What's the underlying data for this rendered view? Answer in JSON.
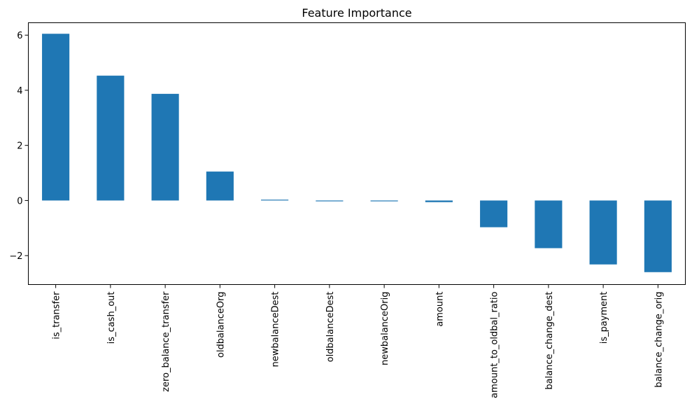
{
  "chart_data": {
    "type": "bar",
    "title": "Feature Importance",
    "xlabel": "",
    "ylabel": "",
    "categories": [
      "is_transfer",
      "is_cash_out",
      "zero_balance_transfer",
      "oldbalanceOrg",
      "newbalanceDest",
      "oldbalanceDest",
      "newbalanceOrig",
      "amount",
      "amount_to_oldbal_ratio",
      "balance_change_dest",
      "is_payment",
      "balance_change_orig"
    ],
    "values": [
      6.05,
      4.53,
      3.87,
      1.05,
      0.03,
      -0.03,
      -0.03,
      -0.06,
      -0.97,
      -1.73,
      -2.32,
      -2.6
    ],
    "ylim": [
      -3.05,
      6.45
    ],
    "yticks": [
      6,
      4,
      2,
      0,
      -2
    ],
    "ytick_labels": [
      "6",
      "4",
      "2",
      "0",
      "−2"
    ],
    "bar_color": "#1f77b4",
    "grid": false,
    "legend": "none"
  }
}
